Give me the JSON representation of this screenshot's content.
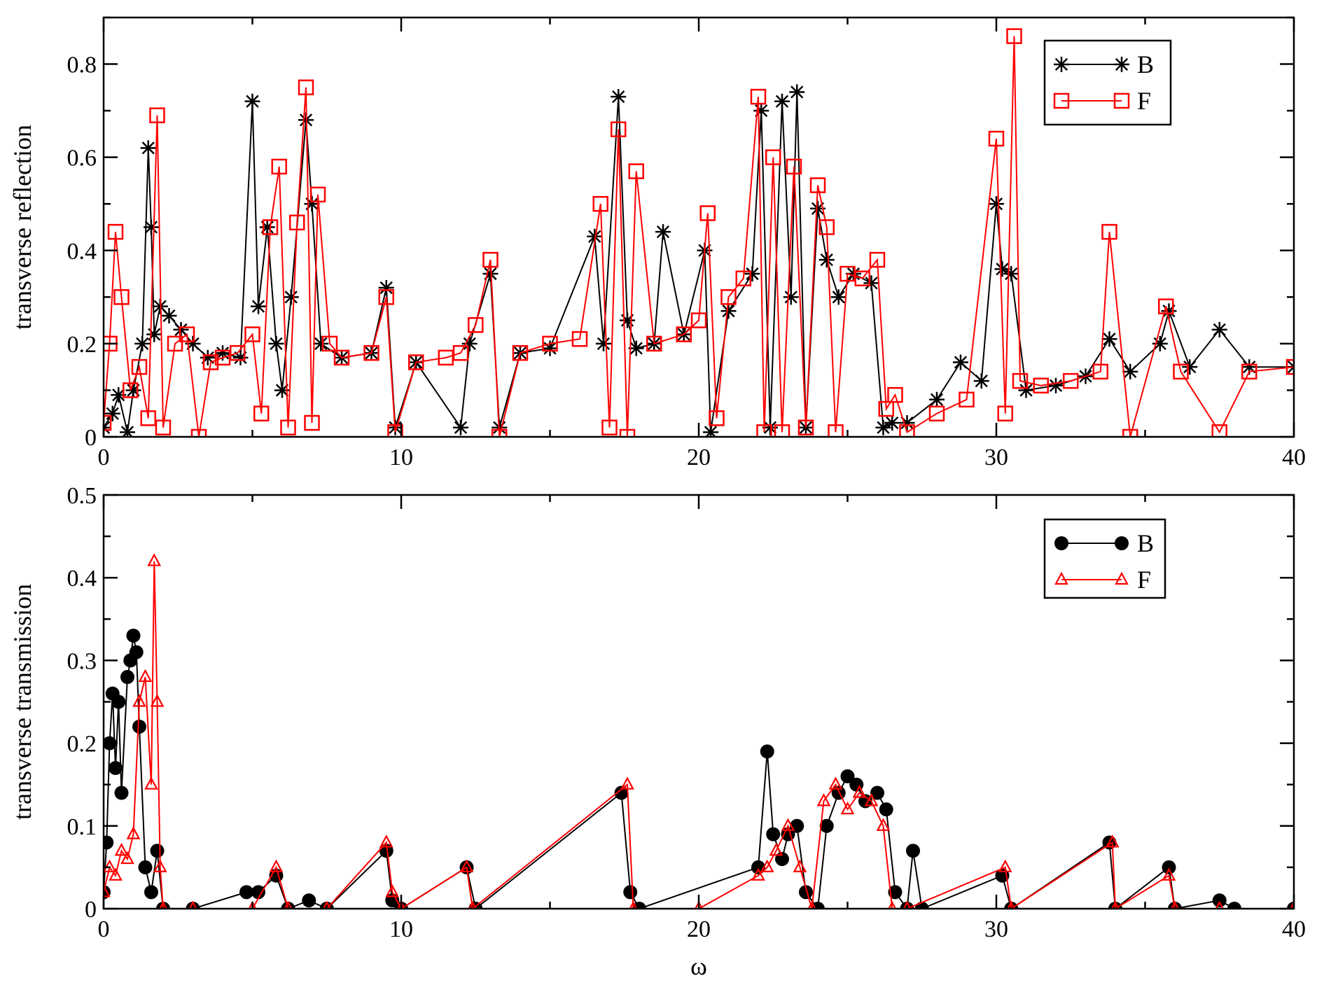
{
  "chart_data": [
    {
      "type": "line",
      "ylabel": "transverse reflection",
      "xlabel": "",
      "xlim": [
        0,
        40
      ],
      "ylim": [
        0,
        0.9
      ],
      "xticks": [
        0,
        10,
        20,
        30,
        40
      ],
      "yticks": [
        0,
        0.2,
        0.4,
        0.6,
        0.8
      ],
      "xtick_labels": [
        "0",
        "10",
        "20",
        "30",
        "40"
      ],
      "ytick_labels": [
        "0",
        "0.2",
        "0.4",
        "0.6",
        "0.8"
      ],
      "grid": false,
      "legend_position": "top-right",
      "series": [
        {
          "name": "B",
          "color": "#000000",
          "marker": "star",
          "x": [
            0,
            0.3,
            0.5,
            0.8,
            1.0,
            1.3,
            1.5,
            1.6,
            1.7,
            1.9,
            2.2,
            2.6,
            3.0,
            3.5,
            4.0,
            4.6,
            5.0,
            5.2,
            5.5,
            5.8,
            6.0,
            6.3,
            6.8,
            7.0,
            7.3,
            8.0,
            9.0,
            9.5,
            9.8,
            10.5,
            12.0,
            12.3,
            13.0,
            13.3,
            14.0,
            15.0,
            16.5,
            16.8,
            17.3,
            17.6,
            17.9,
            18.5,
            18.8,
            19.5,
            20.2,
            20.4,
            21.0,
            21.8,
            22.1,
            22.4,
            22.8,
            23.1,
            23.3,
            23.6,
            24.0,
            24.3,
            24.7,
            25.2,
            25.8,
            26.2,
            26.5,
            27.0,
            28.0,
            28.8,
            29.5,
            30.0,
            30.2,
            30.5,
            31.0,
            32.0,
            33.0,
            33.8,
            34.5,
            35.5,
            35.8,
            36.5,
            37.5,
            38.5,
            40.0
          ],
          "y": [
            0.02,
            0.05,
            0.09,
            0.01,
            0.1,
            0.2,
            0.62,
            0.45,
            0.22,
            0.28,
            0.26,
            0.23,
            0.2,
            0.17,
            0.18,
            0.17,
            0.72,
            0.28,
            0.45,
            0.2,
            0.1,
            0.3,
            0.68,
            0.5,
            0.2,
            0.17,
            0.18,
            0.32,
            0.02,
            0.16,
            0.02,
            0.2,
            0.35,
            0.02,
            0.18,
            0.19,
            0.43,
            0.2,
            0.73,
            0.25,
            0.19,
            0.2,
            0.44,
            0.22,
            0.4,
            0.01,
            0.27,
            0.35,
            0.7,
            0.02,
            0.72,
            0.3,
            0.74,
            0.02,
            0.49,
            0.38,
            0.3,
            0.35,
            0.33,
            0.02,
            0.03,
            0.03,
            0.08,
            0.16,
            0.12,
            0.5,
            0.36,
            0.35,
            0.1,
            0.11,
            0.13,
            0.21,
            0.14,
            0.2,
            0.27,
            0.15,
            0.23,
            0.15,
            0.15
          ]
        },
        {
          "name": "F",
          "color": "#ff0000",
          "marker": "square",
          "x": [
            0,
            0.2,
            0.4,
            0.6,
            0.9,
            1.2,
            1.5,
            1.8,
            2.0,
            2.4,
            2.8,
            3.2,
            3.6,
            4.0,
            4.5,
            5.0,
            5.3,
            5.6,
            5.9,
            6.2,
            6.5,
            6.8,
            7.0,
            7.2,
            7.6,
            8.0,
            9.0,
            9.5,
            9.8,
            10.5,
            11.5,
            12.0,
            12.5,
            13.0,
            13.3,
            14.0,
            15.0,
            16.0,
            16.7,
            17.0,
            17.3,
            17.6,
            17.9,
            18.5,
            19.5,
            20.0,
            20.3,
            20.6,
            21.0,
            21.5,
            22.0,
            22.2,
            22.5,
            22.8,
            23.2,
            23.6,
            24.0,
            24.3,
            24.6,
            25.0,
            25.5,
            26.0,
            26.3,
            26.6,
            27.0,
            28.0,
            29.0,
            30.0,
            30.3,
            30.6,
            30.8,
            31.5,
            32.5,
            33.5,
            33.8,
            34.5,
            35.7,
            36.2,
            37.5,
            38.5,
            40.0
          ],
          "y": [
            0.03,
            0.2,
            0.44,
            0.3,
            0.1,
            0.15,
            0.04,
            0.69,
            0.02,
            0.2,
            0.22,
            0.0,
            0.16,
            0.17,
            0.18,
            0.22,
            0.05,
            0.45,
            0.58,
            0.02,
            0.46,
            0.75,
            0.03,
            0.52,
            0.2,
            0.17,
            0.18,
            0.3,
            0.01,
            0.16,
            0.17,
            0.18,
            0.24,
            0.38,
            0.0,
            0.18,
            0.2,
            0.21,
            0.5,
            0.02,
            0.66,
            0.0,
            0.57,
            0.2,
            0.22,
            0.25,
            0.48,
            0.04,
            0.3,
            0.34,
            0.73,
            0.01,
            0.6,
            0.01,
            0.58,
            0.02,
            0.54,
            0.45,
            0.01,
            0.35,
            0.34,
            0.38,
            0.06,
            0.09,
            0.01,
            0.05,
            0.08,
            0.64,
            0.05,
            0.86,
            0.12,
            0.11,
            0.12,
            0.14,
            0.44,
            0.0,
            0.28,
            0.14,
            0.01,
            0.14,
            0.15
          ]
        }
      ]
    },
    {
      "type": "line",
      "ylabel": "transverse transmission",
      "xlabel": "ω",
      "xlim": [
        0,
        40
      ],
      "ylim": [
        0,
        0.5
      ],
      "xticks": [
        0,
        10,
        20,
        30,
        40
      ],
      "yticks": [
        0,
        0.1,
        0.2,
        0.3,
        0.4,
        0.5
      ],
      "xtick_labels": [
        "0",
        "10",
        "20",
        "30",
        "40"
      ],
      "ytick_labels": [
        "0",
        "0.1",
        "0.2",
        "0.3",
        "0.4",
        "0.5"
      ],
      "grid": false,
      "legend_position": "top-right",
      "series": [
        {
          "name": "B",
          "color": "#000000",
          "marker": "circle",
          "x": [
            0,
            0.1,
            0.2,
            0.3,
            0.4,
            0.5,
            0.6,
            0.8,
            0.9,
            1.0,
            1.1,
            1.2,
            1.4,
            1.6,
            1.8,
            2.0,
            3.0,
            4.8,
            5.2,
            5.8,
            6.2,
            6.9,
            7.5,
            9.5,
            9.7,
            10.0,
            12.2,
            12.5,
            17.4,
            17.7,
            18.0,
            22.0,
            22.3,
            22.5,
            22.8,
            23.0,
            23.3,
            23.6,
            24.0,
            24.3,
            24.7,
            25.0,
            25.3,
            25.6,
            26.0,
            26.3,
            26.6,
            27.0,
            27.2,
            27.5,
            30.2,
            30.5,
            33.8,
            34.0,
            35.8,
            36.0,
            37.5,
            38.0,
            40.0
          ],
          "y": [
            0.02,
            0.08,
            0.2,
            0.26,
            0.17,
            0.25,
            0.14,
            0.28,
            0.3,
            0.33,
            0.31,
            0.22,
            0.05,
            0.02,
            0.07,
            0.0,
            0.0,
            0.02,
            0.02,
            0.04,
            0.0,
            0.01,
            0.0,
            0.07,
            0.01,
            0.0,
            0.05,
            0.0,
            0.14,
            0.02,
            0.0,
            0.05,
            0.19,
            0.09,
            0.06,
            0.09,
            0.1,
            0.02,
            0.0,
            0.1,
            0.14,
            0.16,
            0.15,
            0.13,
            0.14,
            0.12,
            0.02,
            0.0,
            0.07,
            0.0,
            0.04,
            0.0,
            0.08,
            0.0,
            0.05,
            0.0,
            0.01,
            0.0,
            0.0
          ]
        },
        {
          "name": "F",
          "color": "#ff0000",
          "marker": "triangle",
          "x": [
            0,
            0.2,
            0.4,
            0.6,
            0.8,
            1.0,
            1.2,
            1.4,
            1.6,
            1.7,
            1.8,
            1.9,
            2.0,
            3.0,
            5.0,
            5.8,
            6.2,
            7.5,
            9.5,
            9.7,
            10.0,
            12.2,
            12.4,
            17.6,
            17.8,
            20.0,
            22.0,
            22.3,
            22.6,
            23.0,
            23.4,
            23.8,
            24.2,
            24.6,
            25.0,
            25.4,
            25.8,
            26.2,
            26.5,
            27.0,
            30.3,
            30.5,
            33.9,
            34.0,
            35.8,
            36.0,
            37.5,
            40.0
          ],
          "y": [
            0.02,
            0.05,
            0.04,
            0.07,
            0.06,
            0.09,
            0.25,
            0.28,
            0.15,
            0.42,
            0.25,
            0.05,
            0.0,
            0.0,
            0.0,
            0.05,
            0.0,
            0.0,
            0.08,
            0.02,
            0.0,
            0.05,
            0.0,
            0.15,
            0.0,
            0.0,
            0.04,
            0.05,
            0.07,
            0.1,
            0.05,
            0.0,
            0.13,
            0.15,
            0.12,
            0.14,
            0.13,
            0.1,
            0.0,
            0.0,
            0.05,
            0.0,
            0.08,
            0.0,
            0.04,
            0.0,
            0.0,
            0.0
          ]
        }
      ]
    }
  ]
}
